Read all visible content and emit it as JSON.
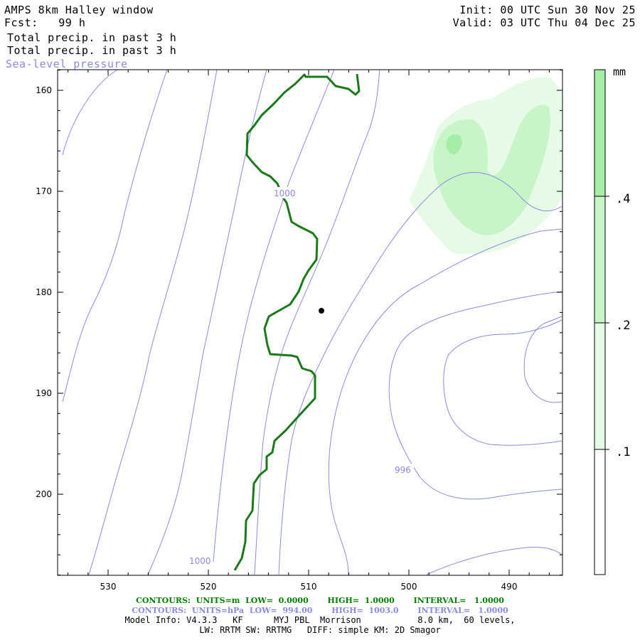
{
  "header": {
    "title": "AMPS 8km Halley window",
    "fcst": "Fcst:   99 h",
    "init": "Init: 00 UTC Sun 30 Nov 25",
    "valid": "Valid: 03 UTC Thu 04 Dec 25",
    "field1": "Total precip. in past 3 h",
    "field2": "Total precip. in past 3 h",
    "field3": "Sea-level pressure"
  },
  "axes": {
    "x_ticks": [
      "530",
      "520",
      "510",
      "500",
      "490"
    ],
    "x_values": [
      530,
      520,
      510,
      500,
      490
    ],
    "y_ticks": [
      "160",
      "170",
      "180",
      "190",
      "200"
    ],
    "y_values": [
      160,
      170,
      180,
      190,
      200
    ]
  },
  "colorbar": {
    "unit": "mm",
    "labels": [
      ".4",
      ".2",
      ".1"
    ],
    "levels": [
      0.4,
      0.2,
      0.1
    ],
    "colors": [
      "#ffffff",
      "#e6fbe6",
      "#c8f5c8",
      "#a6eea6"
    ]
  },
  "contour_labels": [
    "1000",
    "996",
    "1000"
  ],
  "colors": {
    "precip_light": "#e6fbe6",
    "precip_mid": "#c8f5c8",
    "precip_dark": "#a6eea6",
    "isobar": "#8a8ae6",
    "zero_contour": "#1a7a1a"
  },
  "footer": {
    "line1": "CONTOURS:  UNITS=m  LOW=  0.0000       HIGH=  1.0000       INTERVAL=   1.0000",
    "line2": "CONTOURS:  UNITS=hPa  LOW=  994.00       HIGH=  1003.0       INTERVAL=   1.0000",
    "line3": "Model Info: V4.3.3   KF      MYJ PBL  Morrison           8.0 km,  60 levels,",
    "line4": "LW: RRTM SW: RRTMG   DIFF: simple KM: 2D Smagor"
  }
}
